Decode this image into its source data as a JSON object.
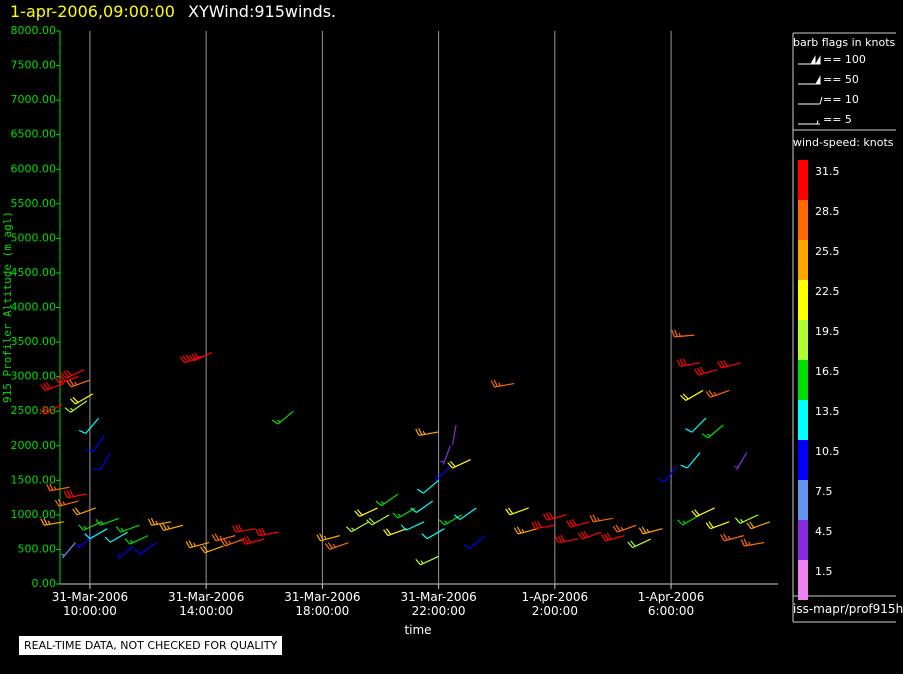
{
  "chart_data": {
    "type": "barb",
    "title": "1-apr-2006,09:00:00",
    "subtitle": "XYWind:915winds.",
    "y_label": "915 Profiler Altitude (m agl)",
    "x_label": "time",
    "notice": "REAL-TIME DATA, NOT CHECKED FOR QUALITY",
    "source": "iss-mapr/prof915h",
    "xlim": [
      8.97,
      33.68
    ],
    "xticks": [
      {
        "value": 10,
        "label": "31-Mar-2006 10:00:00"
      },
      {
        "value": 14,
        "label": "31-Mar-2006 14:00:00"
      },
      {
        "value": 18,
        "label": "31-Mar-2006 18:00:00"
      },
      {
        "value": 22,
        "label": "31-Mar-2006 22:00:00"
      },
      {
        "value": 26,
        "label": "1-Apr-2006 2:00:00"
      },
      {
        "value": 30,
        "label": "1-Apr-2006 6:00:00"
      }
    ],
    "ylim": [
      0,
      8000
    ],
    "yticks": [
      {
        "value": 0,
        "label": "0.00"
      },
      {
        "value": 500,
        "label": "500.00"
      },
      {
        "value": 1000,
        "label": "1000.00"
      },
      {
        "value": 1500,
        "label": "1500.00"
      },
      {
        "value": 2000,
        "label": "2000.00"
      },
      {
        "value": 2500,
        "label": "2500.00"
      },
      {
        "value": 3000,
        "label": "3000.00"
      },
      {
        "value": 3500,
        "label": "3500.00"
      },
      {
        "value": 4000,
        "label": "4000.00"
      },
      {
        "value": 4500,
        "label": "4500.00"
      },
      {
        "value": 5000,
        "label": "5000.00"
      },
      {
        "value": 5500,
        "label": "5500.00"
      },
      {
        "value": 6000,
        "label": "6000.00"
      },
      {
        "value": 6500,
        "label": "6500.00"
      },
      {
        "value": 7000,
        "label": "7000.00"
      },
      {
        "value": 7500,
        "label": "7500.00"
      },
      {
        "value": 8000,
        "label": "8000.00"
      }
    ],
    "grid": true,
    "legend": {
      "title": "barb flags in knots",
      "entries": [
        {
          "value": 100,
          "label": "== 100"
        },
        {
          "value": 50,
          "label": "== 50"
        },
        {
          "value": 10,
          "label": "== 10"
        },
        {
          "value": 5,
          "label": "== 5"
        }
      ]
    },
    "colorbar": {
      "title": "wind-speed: knots",
      "levels": [
        31.5,
        28.5,
        25.5,
        22.5,
        19.5,
        16.5,
        13.5,
        10.5,
        7.5,
        4.5,
        1.5
      ],
      "colors": [
        "#ff0000",
        "#ff6a00",
        "#ffa500",
        "#ffff00",
        "#adff2f",
        "#00dd00",
        "#00ffff",
        "#0000ff",
        "#6495ed",
        "#8a2be2",
        "#ee82ee"
      ]
    },
    "x": [
      9.05,
      9.1,
      9.1,
      9.6,
      9.8,
      10.0,
      10.1,
      9.9,
      10.3,
      10.5,
      10.7,
      9.3,
      9.6,
      9.9,
      10.2,
      10.4,
      10.1,
      10.6,
      9.5,
      11.0,
      11.3,
      11.7,
      12.0,
      12.3,
      11.5,
      12.8,
      13.2,
      13.9,
      14.2,
      14.1,
      14.6,
      15.0,
      15.3,
      15.7,
      16.0,
      16.5,
      17.0,
      18.6,
      18.9,
      19.6,
      19.9,
      20.3,
      20.6,
      20.9,
      21.2,
      21.5,
      21.8,
      22.0,
      22.2,
      22.4,
      22.0,
      22.4,
      22.6,
      22.0,
      22.8,
      23.1,
      23.3,
      23.6,
      24.6,
      25.1,
      25.4,
      26.0,
      26.4,
      26.8,
      27.2,
      27.6,
      28.0,
      28.4,
      28.8,
      29.3,
      29.7,
      30.2,
      30.8,
      31.0,
      31.1,
      31.2,
      31.0,
      31.0,
      31.6,
      32.0,
      32.4,
      31.8,
      32.6,
      31.5,
      32.0,
      32.5,
      33.0,
      33.2,
      33.4
    ],
    "altitude": [
      2600,
      2900,
      900,
      3000,
      3100,
      2950,
      2750,
      2650,
      2400,
      2150,
      1900,
      1400,
      1200,
      1300,
      1100,
      900,
      700,
      800,
      600,
      950,
      750,
      850,
      700,
      600,
      550,
      900,
      850,
      3300,
      3350,
      600,
      550,
      700,
      650,
      800,
      650,
      750,
      2500,
      700,
      600,
      900,
      1100,
      1000,
      1300,
      800,
      1100,
      900,
      1200,
      1500,
      800,
      1700,
      2200,
      2000,
      2300,
      400,
      1000,
      1800,
      1100,
      700,
      2900,
      1100,
      800,
      850,
      1000,
      650,
      900,
      750,
      950,
      700,
      850,
      650,
      800,
      1700,
      3600,
      3200,
      2800,
      2400,
      1900,
      1000,
      3100,
      2800,
      3200,
      2300,
      1900,
      1100,
      900,
      700,
      1000,
      600,
      900
    ],
    "speed": [
      31,
      30,
      25,
      31,
      30,
      29,
      21,
      19,
      13,
      11,
      10,
      28,
      27,
      31,
      24,
      15,
      9,
      14,
      8,
      16,
      13,
      17,
      15,
      11,
      9,
      26,
      25,
      31,
      31,
      26,
      24,
      29,
      28,
      30,
      31,
      30,
      17,
      26,
      28,
      19,
      21,
      20,
      17,
      22,
      16,
      14,
      13,
      12,
      13,
      9,
      26,
      5,
      4,
      18,
      15,
      22,
      13,
      11,
      27,
      22,
      26,
      30,
      31,
      31,
      30,
      31,
      28,
      30,
      27,
      20,
      26,
      10,
      27,
      31,
      21,
      13,
      12,
      15,
      31,
      28,
      30,
      17,
      5,
      21,
      22,
      27,
      18,
      29,
      24
    ],
    "direction": [
      240,
      250,
      260,
      250,
      245,
      250,
      240,
      235,
      220,
      215,
      210,
      260,
      255,
      260,
      250,
      245,
      230,
      240,
      220,
      250,
      240,
      250,
      245,
      235,
      230,
      260,
      255,
      250,
      245,
      255,
      250,
      255,
      250,
      260,
      255,
      260,
      230,
      255,
      250,
      240,
      245,
      240,
      235,
      250,
      240,
      245,
      235,
      230,
      240,
      225,
      260,
      200,
      190,
      245,
      240,
      245,
      235,
      230,
      260,
      250,
      255,
      260,
      255,
      260,
      255,
      250,
      260,
      255,
      250,
      245,
      255,
      220,
      265,
      260,
      240,
      225,
      220,
      240,
      255,
      250,
      255,
      230,
      210,
      245,
      250,
      255,
      245,
      260,
      250
    ]
  }
}
